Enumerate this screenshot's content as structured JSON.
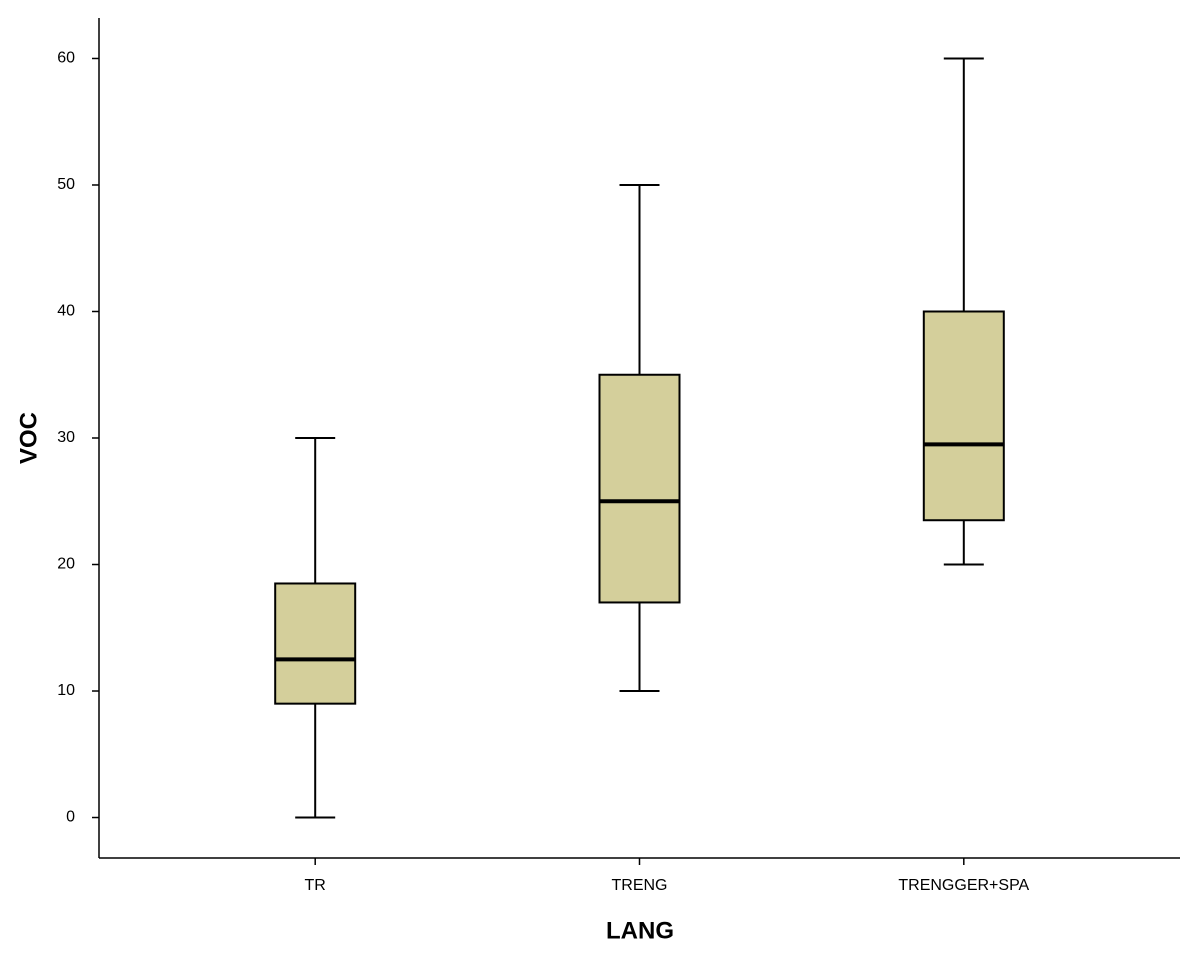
{
  "chart_data": {
    "type": "box",
    "x_label": "LANG",
    "y_label": "VOC",
    "categories": [
      "TR",
      "TRENG",
      "TRENGGER+SPA"
    ],
    "min": [
      0,
      10,
      20
    ],
    "q1": [
      9,
      17,
      23.5
    ],
    "median": [
      12.5,
      25,
      29.5
    ],
    "q3": [
      18.5,
      35,
      40
    ],
    "max": [
      30,
      50,
      60
    ],
    "color": "#d4cf9b",
    "ylim": [
      -3.2,
      63.2
    ],
    "yticks": [
      0,
      10,
      20,
      30,
      40,
      50,
      60
    ]
  }
}
